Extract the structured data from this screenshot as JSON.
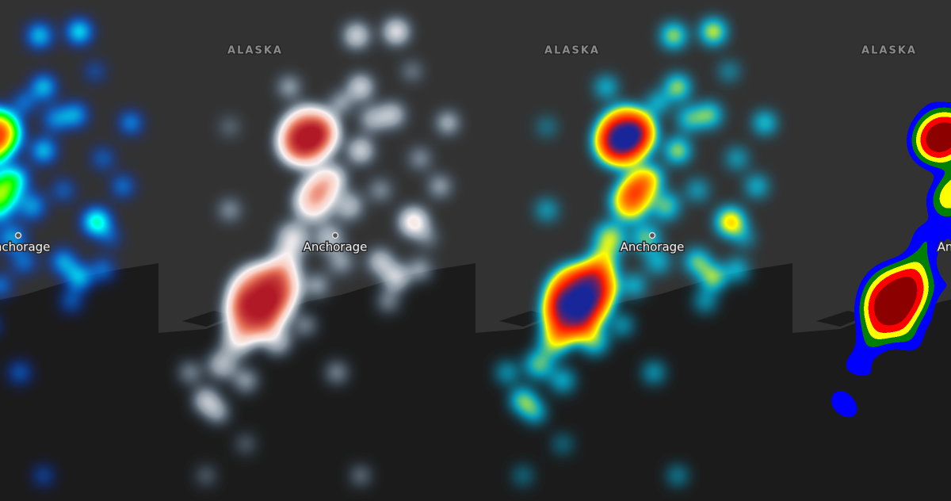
{
  "panels": [
    {
      "place_label": "Anchorage"
    },
    {
      "region_label": "ALASKA",
      "place_label": "Anchorage"
    },
    {
      "region_label": "ALASKA",
      "place_label": "Anchorage"
    },
    {
      "region_label": "ALASKA",
      "place_label": "Anchorage"
    }
  ]
}
